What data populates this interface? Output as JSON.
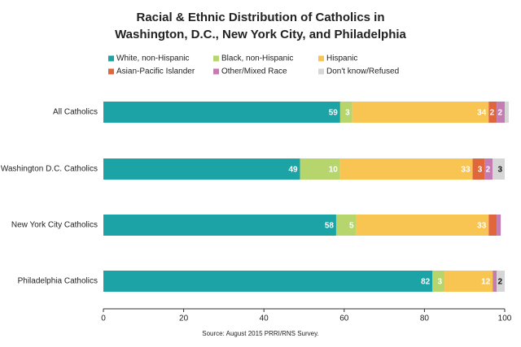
{
  "chart_data": {
    "type": "stacked_bar_horizontal",
    "title": [
      "Racial & Ethnic Distribution of Catholics in",
      "Washington, D.C., New York City, and Philadelphia"
    ],
    "source": "Source: August 2015 PRRI/RNS Survey.",
    "categories": [
      "All Catholics",
      "Washington D.C. Catholics",
      "New York City Catholics",
      "Philadelphia Catholics"
    ],
    "series": [
      {
        "name": "White, non-Hispanic",
        "color": "#1ba3a6",
        "label_color": "#ffffff",
        "values": [
          59,
          49,
          58,
          82
        ],
        "value_labels": [
          "59",
          "49",
          "58",
          "82"
        ]
      },
      {
        "name": "Black, non-Hispanic",
        "color": "#b6d56c",
        "label_color": "#ffffff",
        "values": [
          3,
          10,
          5,
          3
        ],
        "value_labels": [
          "3",
          "10",
          "5",
          "3"
        ]
      },
      {
        "name": "Hispanic",
        "color": "#f8c553",
        "label_color": "#ffffff",
        "values": [
          34,
          33,
          33,
          12
        ],
        "value_labels": [
          "34",
          "33",
          "33",
          "12"
        ]
      },
      {
        "name": "Asian-Pacific Islander",
        "color": "#e0663b",
        "label_color": "#ffffff",
        "values": [
          2,
          3,
          2,
          0
        ],
        "value_labels": [
          "2",
          "3",
          null,
          null
        ]
      },
      {
        "name": "Other/Mixed Race",
        "color": "#c47cb3",
        "label_color": "#ffffff",
        "values": [
          2,
          2,
          1,
          1
        ],
        "value_labels": [
          "2",
          "2",
          null,
          null
        ]
      },
      {
        "name": "Don't know/Refused",
        "color": "#d6d6d6",
        "label_color": "#111111",
        "values": [
          1,
          3,
          0,
          2
        ],
        "value_labels": [
          null,
          "3",
          null,
          "2"
        ]
      }
    ],
    "xlim": [
      0,
      100
    ],
    "xticks": [
      0,
      20,
      40,
      60,
      80,
      100
    ]
  }
}
